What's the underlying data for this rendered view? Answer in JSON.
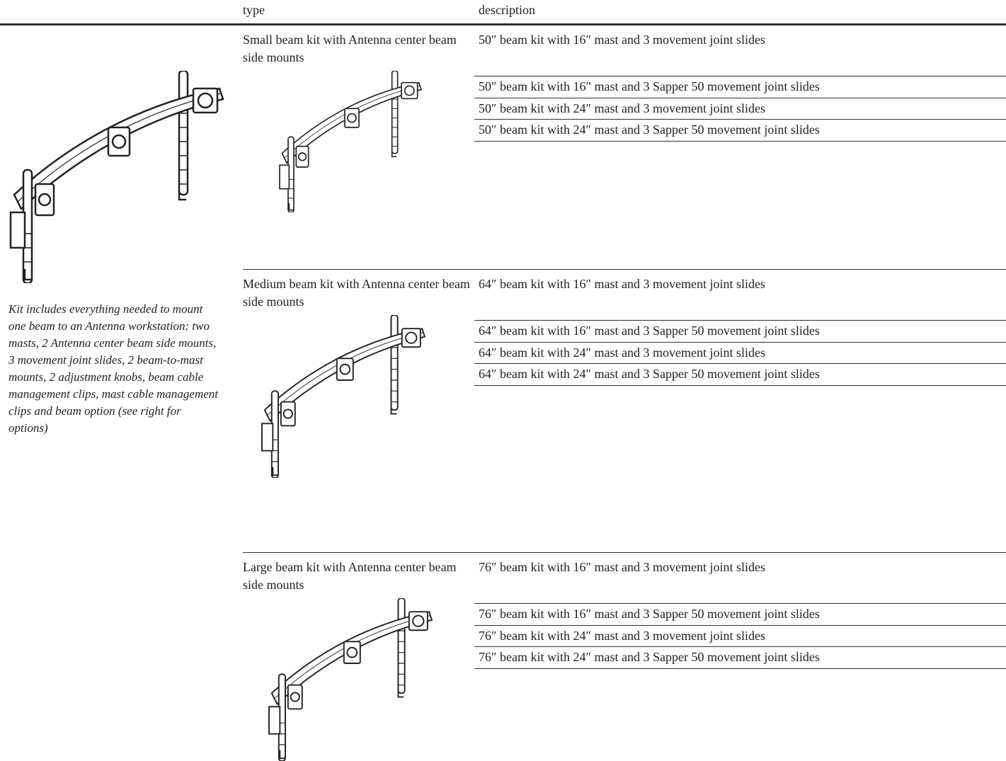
{
  "header": {
    "type": "type",
    "description": "description"
  },
  "note": "Kit includes everything needed to mount one beam to an Antenna workstation: two masts, 2 Antenna center beam side mounts, 3 movement joint slides, 2 beam-to-mast mounts, 2 adjustment knobs, beam cable management clips, mast cable management clips and beam option (see right for options)",
  "groups": [
    {
      "type": "Small beam kit with Antenna center beam side mounts",
      "descriptions": [
        "50″ beam kit with 16″ mast and 3 movement joint slides",
        "50″ beam kit with 16″ mast and 3 Sapper 50 movement joint slides",
        "50″ beam kit with 24″ mast and 3 movement joint slides",
        "50″ beam kit with 24″ mast and 3 Sapper 50 movement joint slides"
      ]
    },
    {
      "type": "Medium beam kit with Antenna center beam side mounts",
      "descriptions": [
        "64″ beam kit with 16″ mast and 3 movement joint slides",
        "64″ beam kit with 16″ mast and 3 Sapper 50 movement joint slides",
        "64″ beam kit with 24″ mast and 3 movement joint slides",
        "64″ beam kit with 24″ mast and 3 Sapper 50 movement joint slides"
      ]
    },
    {
      "type": "Large beam kit with Antenna center beam side mounts",
      "descriptions": [
        "76″ beam kit with 16″ mast and 3 movement joint slides",
        "76″ beam kit with 16″ mast and 3 Sapper 50 movement joint slides",
        "76″ beam kit with 24″ mast and 3 movement joint slides",
        "76″ beam kit with 24″ mast and 3 Sapper 50 movement joint slides"
      ]
    }
  ]
}
